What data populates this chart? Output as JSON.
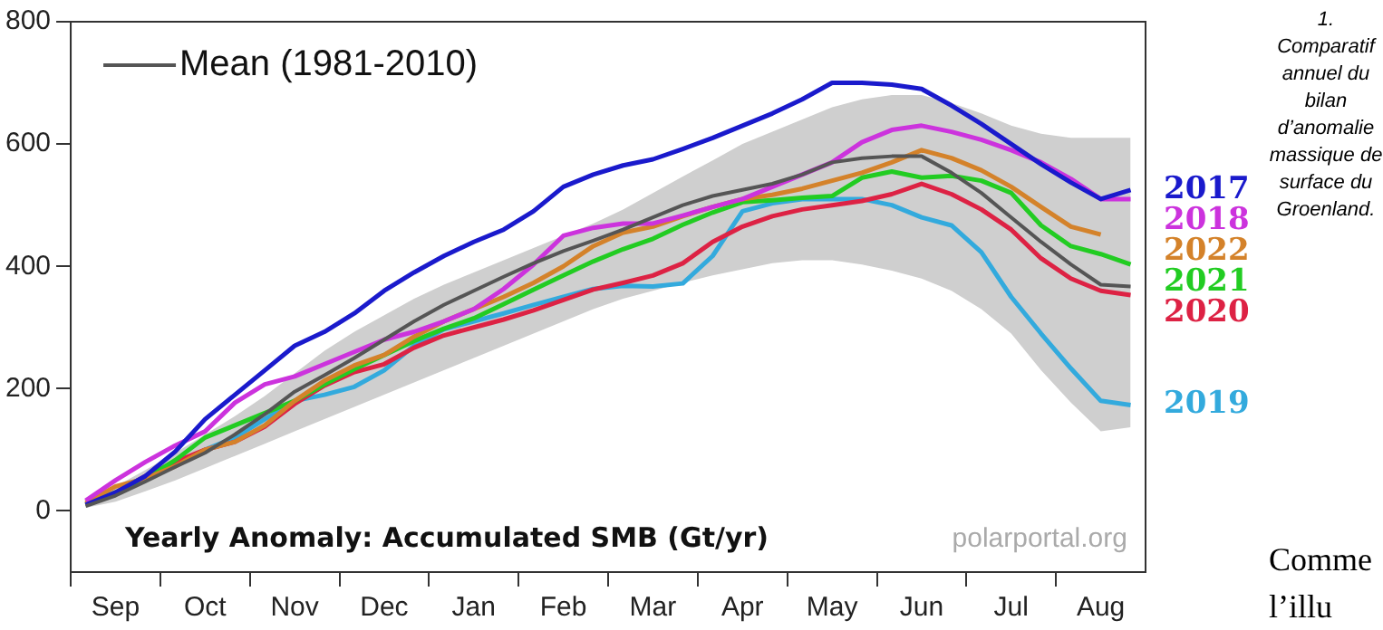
{
  "chart_data": {
    "type": "line",
    "legend": "top left",
    "grid": false,
    "ylim": [
      -100,
      800
    ],
    "yticks": [
      0,
      200,
      400,
      600,
      800
    ],
    "categories": [
      null,
      "Sep",
      null,
      null,
      "Oct",
      null,
      null,
      "Nov",
      null,
      null,
      "Dec",
      null,
      null,
      "Jan",
      null,
      null,
      "Feb",
      null,
      null,
      "Mar",
      null,
      null,
      "Apr",
      null,
      null,
      "May",
      null,
      null,
      "Jun",
      null,
      null,
      "Jul",
      null,
      null,
      "Aug",
      null
    ],
    "annotations": [
      "Yearly Anomaly: Accumulated SMB (Gt/yr)",
      "polarportal.org",
      "1. Comparatif annuel du bilan d’anomalie massique de surface du Groenland.",
      "Comme l’illu"
    ],
    "series": [
      {
        "name": "Mean (1981-2010)",
        "color": "#555555",
        "values": [
          8,
          25,
          48,
          72,
          95,
          125,
          158,
          195,
          222,
          250,
          280,
          310,
          337,
          360,
          383,
          405,
          425,
          442,
          460,
          480,
          500,
          515,
          525,
          535,
          550,
          570,
          577,
          580,
          580,
          553,
          520,
          480,
          440,
          403,
          370,
          367
        ],
        "lower": [
          5,
          15,
          32,
          50,
          70,
          90,
          110,
          130,
          150,
          170,
          190,
          210,
          230,
          250,
          270,
          290,
          310,
          330,
          347,
          360,
          373,
          385,
          395,
          405,
          410,
          410,
          403,
          393,
          380,
          360,
          330,
          290,
          230,
          177,
          130,
          137
        ],
        "upper": [
          13,
          40,
          67,
          95,
          125,
          155,
          188,
          225,
          262,
          293,
          320,
          347,
          370,
          390,
          410,
          430,
          450,
          470,
          493,
          520,
          547,
          573,
          600,
          620,
          640,
          660,
          673,
          680,
          680,
          667,
          650,
          630,
          617,
          610,
          610,
          610
        ]
      },
      {
        "name": "2017",
        "color": "#1a1acc",
        "values": [
          10,
          30,
          57,
          97,
          150,
          190,
          230,
          270,
          293,
          323,
          360,
          390,
          417,
          440,
          460,
          490,
          530,
          550,
          565,
          575,
          592,
          610,
          630,
          650,
          673,
          700,
          700,
          697,
          690,
          663,
          633,
          600,
          567,
          537,
          510,
          525
        ]
      },
      {
        "name": "2018",
        "color": "#cc33dd",
        "values": [
          17,
          50,
          80,
          107,
          130,
          177,
          207,
          220,
          240,
          260,
          280,
          293,
          310,
          330,
          363,
          403,
          450,
          463,
          470,
          470,
          483,
          497,
          510,
          530,
          550,
          570,
          603,
          623,
          630,
          620,
          607,
          590,
          570,
          543,
          510,
          510
        ]
      },
      {
        "name": "2022",
        "color": "#d4822a",
        "values": [
          13,
          40,
          53,
          73,
          100,
          113,
          140,
          180,
          213,
          238,
          255,
          285,
          310,
          330,
          350,
          373,
          400,
          433,
          455,
          465,
          482,
          497,
          510,
          517,
          527,
          540,
          553,
          570,
          590,
          577,
          557,
          530,
          497,
          465,
          452,
          null
        ]
      },
      {
        "name": "2021",
        "color": "#22cc22",
        "values": [
          10,
          30,
          53,
          83,
          120,
          140,
          160,
          180,
          207,
          232,
          255,
          278,
          298,
          315,
          338,
          362,
          385,
          408,
          428,
          445,
          468,
          488,
          505,
          508,
          512,
          515,
          545,
          555,
          545,
          548,
          540,
          520,
          467,
          433,
          420,
          403
        ]
      },
      {
        "name": "2020",
        "color": "#dd2244",
        "values": [
          10,
          30,
          57,
          80,
          100,
          113,
          138,
          175,
          205,
          227,
          240,
          267,
          287,
          300,
          313,
          328,
          345,
          362,
          373,
          385,
          405,
          440,
          465,
          482,
          493,
          500,
          507,
          518,
          535,
          518,
          493,
          460,
          413,
          380,
          360,
          353
        ]
      },
      {
        "name": "2019",
        "color": "#33aadd",
        "values": [
          null,
          null,
          null,
          73,
          100,
          120,
          150,
          180,
          190,
          203,
          230,
          270,
          297,
          310,
          323,
          337,
          350,
          363,
          368,
          367,
          372,
          417,
          490,
          503,
          510,
          510,
          510,
          500,
          480,
          467,
          423,
          350,
          290,
          233,
          180,
          173
        ]
      }
    ]
  }
}
